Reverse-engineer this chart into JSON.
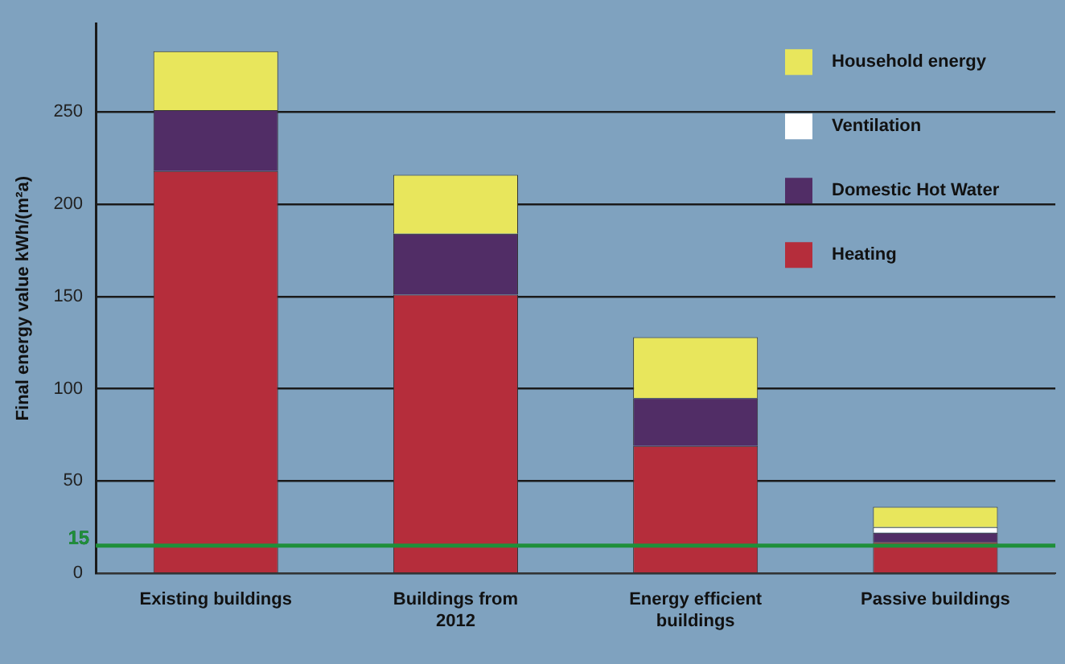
{
  "chart_data": {
    "type": "bar",
    "stacked": true,
    "ylabel": "Final energy value kWh/(m²a)",
    "categories": [
      "Existing buildings",
      "Buildings from 2012",
      "Energy efficient buildings",
      "Passive buildings"
    ],
    "series": [
      {
        "name": "Heating",
        "color": "#b52d3b",
        "values": [
          218,
          151,
          69,
          17
        ]
      },
      {
        "name": "Domestic Hot Water",
        "color": "#512d66",
        "values": [
          33,
          33,
          26,
          5
        ]
      },
      {
        "name": "Ventilation",
        "color": "#ffffff",
        "values": [
          0,
          0,
          0,
          3
        ]
      },
      {
        "name": "Household energy",
        "color": "#e8e65c",
        "values": [
          32,
          32,
          33,
          11
        ]
      }
    ],
    "ylim": [
      0,
      298
    ],
    "yticks": [
      0,
      50,
      100,
      150,
      200,
      250
    ],
    "grid": "y",
    "legend": "top right",
    "ref_lines": [
      {
        "axis": "y",
        "value": 15,
        "label": "15",
        "color": "#1f8f3a"
      }
    ]
  }
}
